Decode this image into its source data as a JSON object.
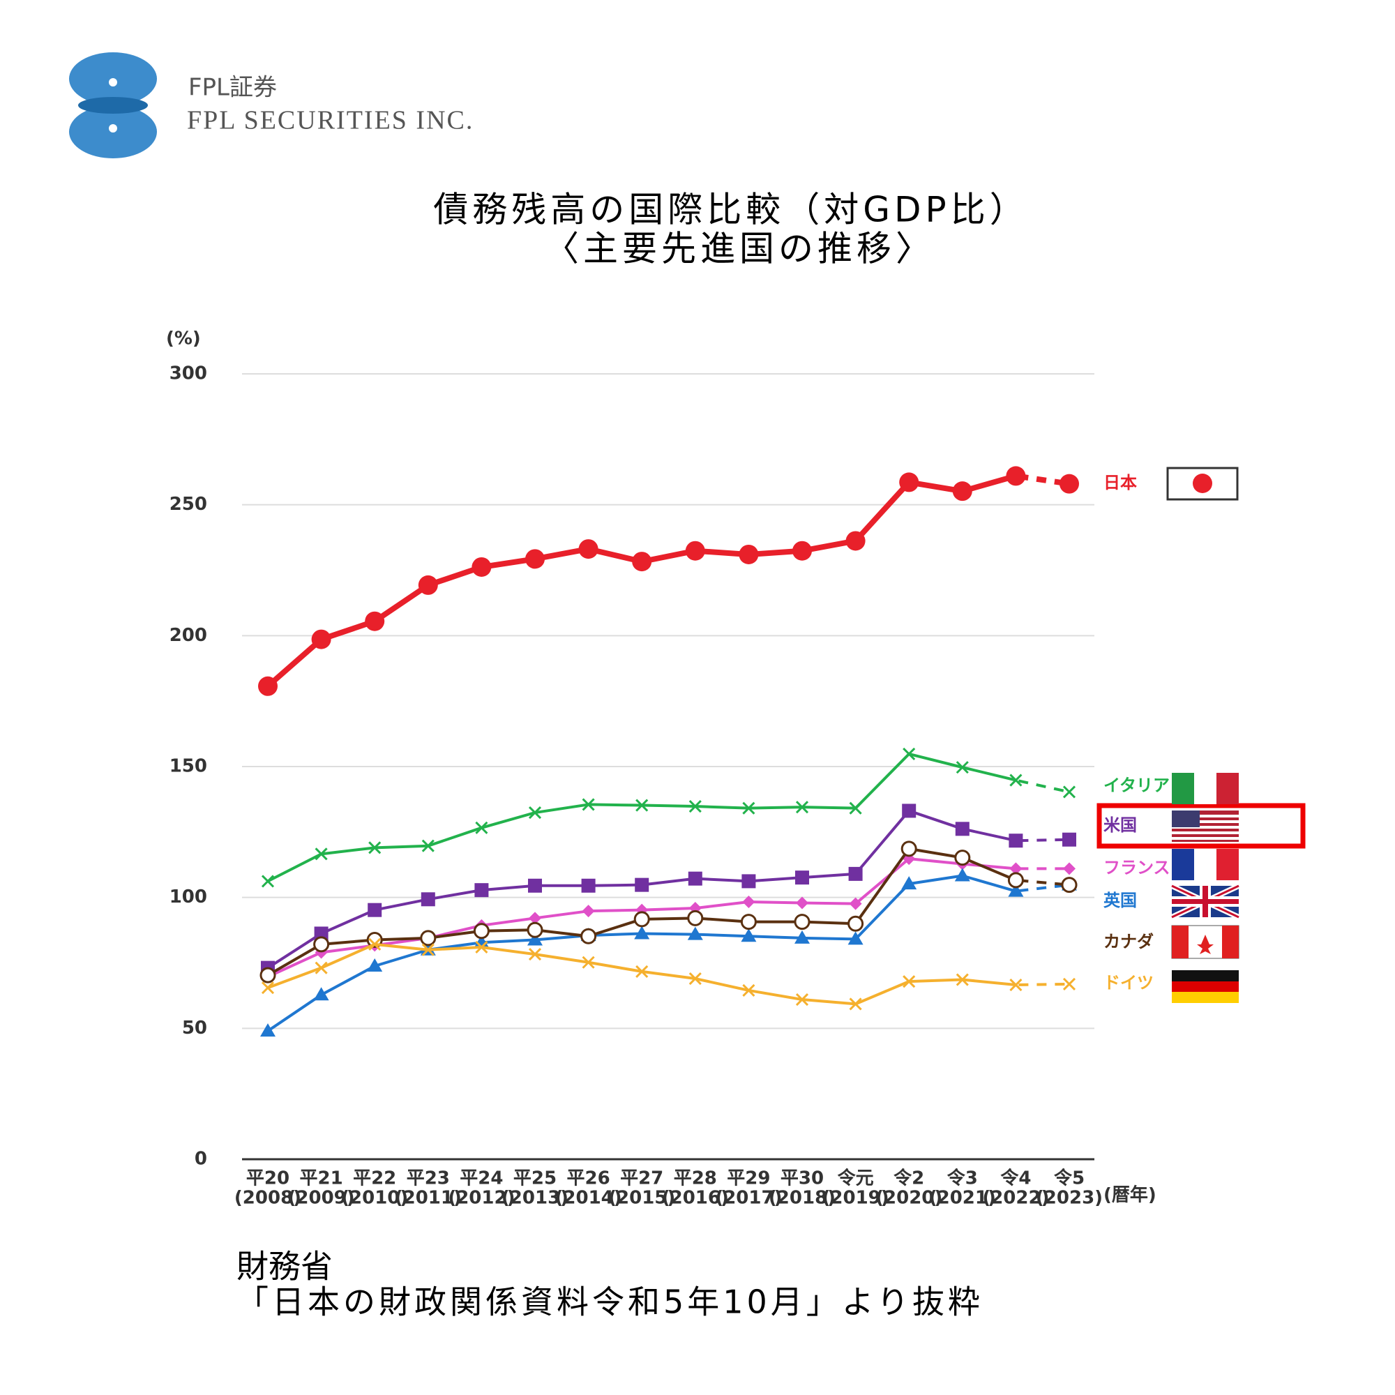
{
  "logo": {
    "name_ja": "FPL証券",
    "name_en": "FPL SECURITIES INC."
  },
  "chart_data": {
    "type": "line",
    "title": "債務残高の国際比較（対GDP比）",
    "subtitle": "〈主要先進国の推移〉",
    "y_label": "(%)",
    "x_label": "(暦年)",
    "categories": [
      "平20",
      "平21",
      "平22",
      "平23",
      "平24",
      "平25",
      "平26",
      "平27",
      "平28",
      "平29",
      "平30",
      "令元",
      "令2",
      "令3",
      "令4",
      "令5"
    ],
    "categories_sub": [
      "(2008)",
      "(2009)",
      "(2010)",
      "(2011)",
      "(2012)",
      "(2013)",
      "(2014)",
      "(2015)",
      "(2016)",
      "(2017)",
      "(2018)",
      "(2019)",
      "(2020)",
      "(2021)",
      "(2022)",
      "(2023)"
    ],
    "ylim": [
      0,
      300
    ],
    "yticks": [
      0,
      50,
      100,
      150,
      200,
      250,
      300
    ],
    "grid": true,
    "series": [
      {
        "name": "日本",
        "color": "#e8202a",
        "marker": "dot",
        "values": [
          180.7,
          198.6,
          205.5,
          219.3,
          226.2,
          229.3,
          233.1,
          228.3,
          232.4,
          231,
          232.4,
          236.2,
          258.6,
          255.2,
          261,
          258
        ]
      },
      {
        "name": "イタリア",
        "color": "#22b24c",
        "marker": "x",
        "values": [
          106.2,
          116.6,
          119,
          119.7,
          126.6,
          132.4,
          135.5,
          135.2,
          134.8,
          134.1,
          134.5,
          134.1,
          154.8,
          149.7,
          144.8,
          140.3
        ]
      },
      {
        "name": "米国",
        "color": "#7030a0",
        "marker": "square",
        "values": [
          73.1,
          86.2,
          95.2,
          99.3,
          102.8,
          104.5,
          104.5,
          104.8,
          107.2,
          106.2,
          107.6,
          109,
          133.1,
          126.2,
          121.7,
          122.1
        ]
      },
      {
        "name": "フランス",
        "color": "#e050c8",
        "marker": "diamond",
        "values": [
          69.7,
          79,
          81.7,
          84.5,
          89.3,
          92.1,
          94.8,
          95.2,
          95.9,
          98.3,
          97.9,
          97.6,
          114.8,
          112.8,
          111,
          111
        ]
      },
      {
        "name": "英国",
        "color": "#1f77d0",
        "marker": "triangle",
        "values": [
          49,
          62.8,
          73.8,
          80,
          82.8,
          83.8,
          85.5,
          86.2,
          85.9,
          85.2,
          84.5,
          84.1,
          105.2,
          108.3,
          102.4,
          104.8
        ]
      },
      {
        "name": "カナダ",
        "color": "#5a3010",
        "marker": "ring",
        "values": [
          70.3,
          82.1,
          83.8,
          84.5,
          87.2,
          87.6,
          85.2,
          91.7,
          92.1,
          90.7,
          90.7,
          90,
          118.6,
          115.2,
          106.6,
          104.8
        ]
      },
      {
        "name": "ドイツ",
        "color": "#f5b02e",
        "marker": "x",
        "values": [
          65.5,
          73.1,
          82.1,
          80,
          81,
          78.3,
          75.2,
          71.7,
          69,
          64.5,
          61,
          59.3,
          67.9,
          68.6,
          66.6,
          66.9
        ]
      }
    ]
  },
  "source": {
    "line1": "財務省",
    "line2": "「日本の財政関係資料令和5年10月」より抜粋"
  }
}
